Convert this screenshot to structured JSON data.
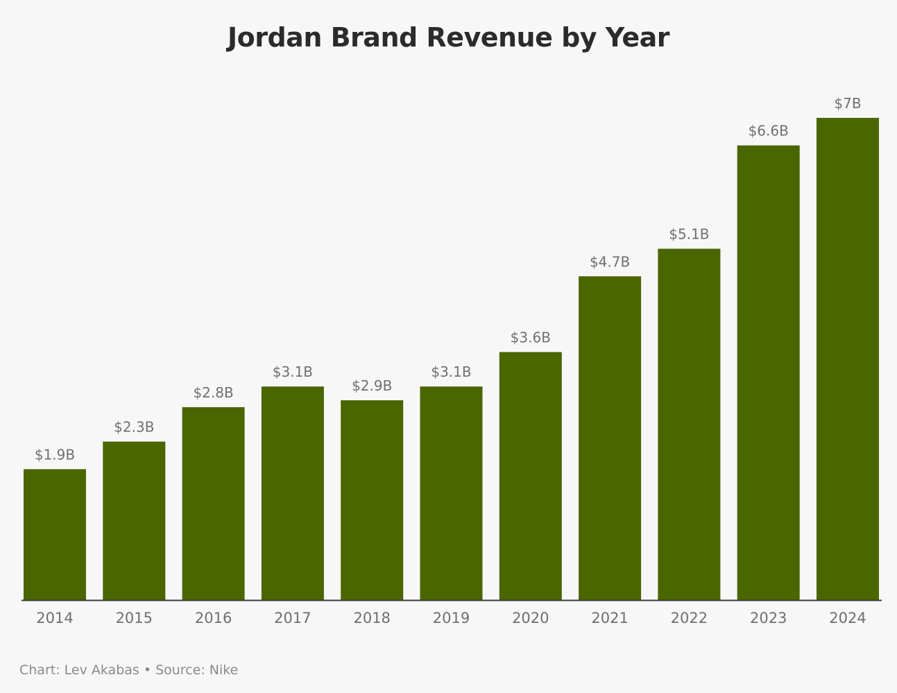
{
  "colors": {
    "bar": "#4a6600",
    "axis": "#3a3a3a",
    "background": "#f7f7f7"
  },
  "footer": {
    "text": "Chart: Lev Akabas • Source: Nike"
  },
  "chart_data": {
    "type": "bar",
    "title": "Jordan Brand Revenue by Year",
    "xlabel": "",
    "ylabel": "",
    "categories": [
      "2014",
      "2015",
      "2016",
      "2017",
      "2018",
      "2019",
      "2020",
      "2021",
      "2022",
      "2023",
      "2024"
    ],
    "values": [
      1.9,
      2.3,
      2.8,
      3.1,
      2.9,
      3.1,
      3.6,
      4.7,
      5.1,
      6.6,
      7.0
    ],
    "data_labels": [
      "$1.9B",
      "$2.3B",
      "$2.8B",
      "$3.1B",
      "$2.9B",
      "$3.1B",
      "$3.6B",
      "$4.7B",
      "$5.1B",
      "$6.6B",
      "$7B"
    ],
    "ylim": [
      0,
      7
    ],
    "grid": false,
    "legend": "none"
  }
}
